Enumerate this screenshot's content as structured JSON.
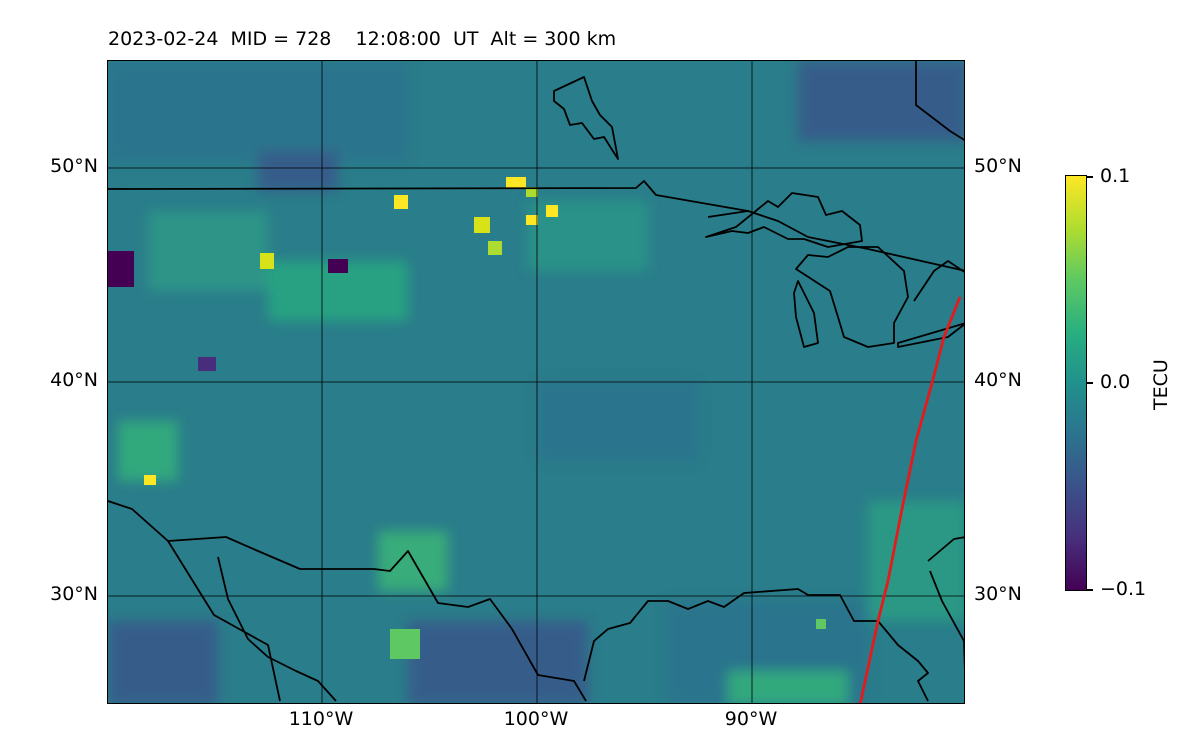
{
  "title": "2023-02-24  MID = 728    12:08:00  UT  Alt = 300 km",
  "map": {
    "lat_labels": [
      "50°N",
      "40°N",
      "30°N"
    ],
    "lon_labels": [
      "110°W",
      "100°W",
      "90°W"
    ],
    "background_color": "#2a7f8a",
    "coastline_color": "#000000",
    "track_color": "#e41a1c"
  },
  "colorbar": {
    "max_label": "0.1",
    "mid_label": "0.0",
    "min_label": "−0.1",
    "title": "TECU",
    "colormap": "viridis"
  }
}
